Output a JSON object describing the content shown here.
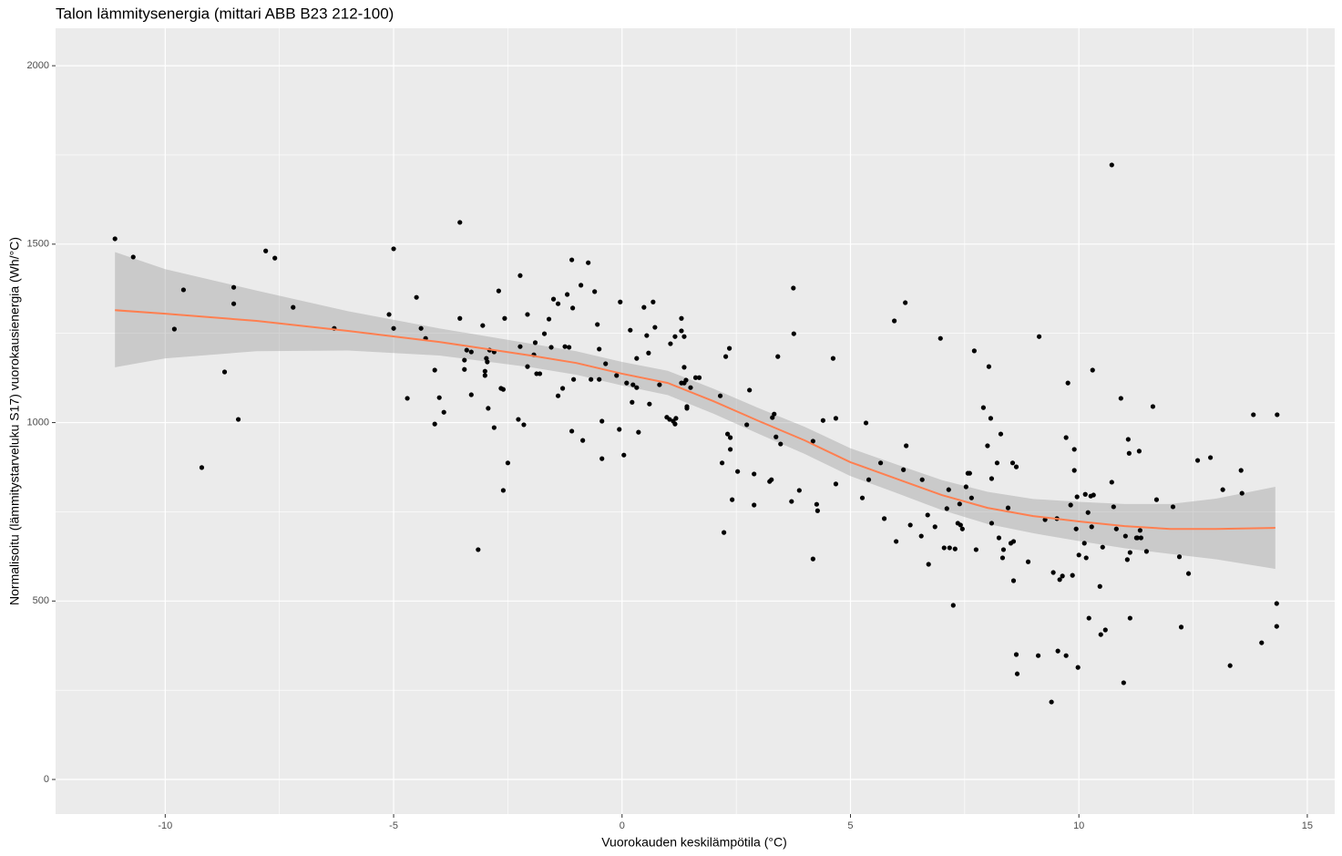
{
  "chart_data": {
    "type": "scatter",
    "title": "Talon lämmitysenergia (mittari ABB B23 212-100)",
    "x_label": "Vuorokauden keskilämpötila (°C)",
    "y_label": "Normalisoitu (lämmitystarveluku S17) vuorokausienergia (Wh/°C)",
    "xlim": [
      -12.4,
      15.6
    ],
    "ylim": [
      -97,
      2105
    ],
    "xticks": [
      -10,
      -5,
      0,
      5,
      10,
      15
    ],
    "yticks": [
      0,
      500,
      1000,
      1500,
      2000
    ],
    "grid": true,
    "minor_grid": true,
    "color": "#000000",
    "x": [
      -11.1,
      -10.7,
      -9.6,
      -9.8,
      -9.2,
      -8.7,
      -8.5,
      -8.5,
      -8.4,
      -7.8,
      -7.6,
      -7.2,
      -6.3,
      -5.1,
      -5.0,
      -5.0,
      -4.5,
      -4.4,
      -4.3,
      -4.7,
      -4.1,
      -4.1,
      -4.0,
      -3.9,
      -3.55,
      -3.55,
      -3.45,
      -3.45,
      -3.4,
      -3.3,
      -3.3,
      -3.15,
      -3.05,
      -3.0,
      -3.0,
      -2.95,
      -2.97,
      -2.9,
      -2.93,
      -2.8,
      -2.8,
      -2.7,
      -2.65,
      -2.6,
      -2.6,
      -2.57,
      -2.5,
      -2.27,
      -2.23,
      -2.23,
      -2.15,
      -2.07,
      -2.07,
      -1.93,
      -1.87,
      -1.9,
      -1.8,
      -1.7,
      -1.6,
      -1.55,
      -1.5,
      -1.4,
      -1.4,
      -1.3,
      -1.25,
      -1.2,
      -1.16,
      -1.1,
      -1.1,
      -1.08,
      -1.06,
      -0.9,
      -0.86,
      -0.74,
      -0.68,
      -0.6,
      -0.54,
      -0.5,
      -0.5,
      -0.44,
      -0.44,
      -0.36,
      -0.12,
      -0.06,
      -0.04,
      0.04,
      0.1,
      0.18,
      0.22,
      0.24,
      0.32,
      0.32,
      0.36,
      0.48,
      0.54,
      0.58,
      0.6,
      0.68,
      0.72,
      0.82,
      0.98,
      1.04,
      1.06,
      1.12,
      1.16,
      1.16,
      1.18,
      1.3,
      1.3,
      1.3,
      1.36,
      1.36,
      1.36,
      1.4,
      1.42,
      1.42,
      1.5,
      1.61,
      1.69,
      2.15,
      2.19,
      2.23,
      2.27,
      2.31,
      2.35,
      2.37,
      2.37,
      2.41,
      2.53,
      2.73,
      2.79,
      2.89,
      2.89,
      3.23,
      3.27,
      3.29,
      3.33,
      3.37,
      3.41,
      3.47,
      3.71,
      3.75,
      3.76,
      3.88,
      4.18,
      4.18,
      4.26,
      4.28,
      4.4,
      4.62,
      4.68,
      4.68,
      5.26,
      5.34,
      5.4,
      5.66,
      5.74,
      5.96,
      6.0,
      6.16,
      6.2,
      6.22,
      6.31,
      6.55,
      6.57,
      6.69,
      6.71,
      6.85,
      6.97,
      7.05,
      7.11,
      7.15,
      7.17,
      7.25,
      7.29,
      7.35,
      7.39,
      7.41,
      7.45,
      7.53,
      7.57,
      7.61,
      7.65,
      7.71,
      7.75,
      7.91,
      8.0,
      8.03,
      8.07,
      8.09,
      8.09,
      8.21,
      8.25,
      8.29,
      8.33,
      8.35,
      8.45,
      8.51,
      8.55,
      8.57,
      8.57,
      8.63,
      8.63,
      8.65,
      8.89,
      9.11,
      9.13,
      9.26,
      9.4,
      9.44,
      9.52,
      9.54,
      9.58,
      9.64,
      9.72,
      9.72,
      9.76,
      9.82,
      9.86,
      9.9,
      9.9,
      9.94,
      9.96,
      9.98,
      10.0,
      10.12,
      10.14,
      10.16,
      10.2,
      10.22,
      10.26,
      10.28,
      10.3,
      10.32,
      10.46,
      10.48,
      10.52,
      10.58,
      10.72,
      10.72,
      10.76,
      10.82,
      10.92,
      10.98,
      11.02,
      11.06,
      11.08,
      11.1,
      11.12,
      11.12,
      11.26,
      11.28,
      11.32,
      11.34,
      11.36,
      11.48,
      11.62,
      11.7,
      12.06,
      12.2,
      12.24,
      12.4,
      12.6,
      12.88,
      13.15,
      13.31,
      13.55,
      13.57,
      13.82,
      14.0,
      14.34,
      14.33,
      14.33
    ],
    "y": [
      1515,
      1464,
      1372,
      1262,
      874,
      1142,
      1379,
      1333,
      1009,
      1481,
      1461,
      1323,
      1264,
      1303,
      1264,
      1487,
      1351,
      1264,
      1236,
      1068,
      1147,
      996,
      1070,
      1029,
      1561,
      1292,
      1175,
      1149,
      1203,
      1198,
      1078,
      644,
      1272,
      1144,
      1132,
      1170,
      1180,
      1203,
      1040,
      1198,
      986,
      1369,
      1096,
      1093,
      810,
      1292,
      887,
      1009,
      1412,
      1213,
      994,
      1303,
      1157,
      1190,
      1137,
      1224,
      1137,
      1249,
      1290,
      1211,
      1346,
      1075,
      1333,
      1096,
      1213,
      1359,
      1211,
      976,
      1456,
      1321,
      1121,
      1385,
      950,
      1448,
      1121,
      1367,
      1275,
      1206,
      1121,
      1004,
      899,
      1165,
      1132,
      981,
      1338,
      909,
      1111,
      1259,
      1057,
      1106,
      1098,
      1180,
      973,
      1323,
      1244,
      1195,
      1052,
      1338,
      1267,
      1106,
      1015,
      1009,
      1221,
      1004,
      1241,
      996,
      1012,
      1292,
      1257,
      1111,
      1241,
      1155,
      1111,
      1119,
      1040,
      1045,
      1098,
      1126,
      1126,
      1075,
      887,
      692,
      1185,
      968,
      1208,
      925,
      958,
      784,
      863,
      994,
      1091,
      856,
      769,
      835,
      840,
      1014,
      1024,
      960,
      1185,
      940,
      779,
      1377,
      1249,
      810,
      948,
      618,
      771,
      753,
      1006,
      1180,
      1012,
      828,
      789,
      999,
      840,
      887,
      731,
      1285,
      667,
      868,
      1336,
      935,
      713,
      682,
      840,
      741,
      603,
      708,
      1236,
      649,
      759,
      812,
      649,
      488,
      646,
      718,
      772,
      713,
      702,
      820,
      858,
      858,
      789,
      1201,
      644,
      1042,
      935,
      1157,
      1012,
      843,
      718,
      887,
      677,
      968,
      621,
      644,
      761,
      662,
      887,
      667,
      557,
      876,
      350,
      296,
      610,
      347,
      1241,
      728,
      217,
      580,
      731,
      360,
      560,
      570,
      958,
      347,
      1111,
      769,
      572,
      925,
      866,
      702,
      792,
      314,
      629,
      662,
      799,
      621,
      748,
      452,
      794,
      708,
      1147,
      797,
      541,
      406,
      651,
      419,
      1722,
      833,
      764,
      702,
      1068,
      271,
      682,
      616,
      953,
      914,
      636,
      452,
      677,
      677,
      920,
      698,
      677,
      639,
      1045,
      784,
      764,
      624,
      427,
      577,
      894,
      902,
      812,
      319,
      866,
      802,
      1022,
      383,
      1022,
      493,
      429
    ],
    "smooth": {
      "color": "#ff7f50",
      "band_color": "#999999",
      "x": [
        -11.1,
        -10,
        -8,
        -6,
        -4,
        -2,
        -1,
        0,
        1,
        2,
        3,
        4,
        5,
        6,
        7,
        8,
        9,
        10,
        11,
        12,
        13,
        14.3
      ],
      "y": [
        1315,
        1305,
        1285,
        1257,
        1226,
        1188,
        1167,
        1137,
        1111,
        1060,
        1004,
        950,
        889,
        843,
        797,
        761,
        738,
        723,
        710,
        702,
        702,
        705
      ],
      "ymin": [
        1155,
        1180,
        1200,
        1202,
        1188,
        1155,
        1134,
        1104,
        1077,
        1025,
        968,
        912,
        850,
        803,
        755,
        716,
        690,
        668,
        648,
        632,
        617,
        590
      ],
      "ymax": [
        1478,
        1430,
        1370,
        1312,
        1264,
        1221,
        1200,
        1170,
        1145,
        1095,
        1040,
        988,
        928,
        883,
        839,
        806,
        786,
        778,
        772,
        772,
        787,
        820
      ]
    }
  }
}
